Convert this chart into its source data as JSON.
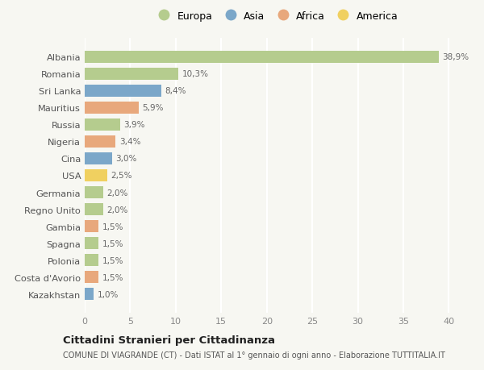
{
  "countries": [
    "Albania",
    "Romania",
    "Sri Lanka",
    "Mauritius",
    "Russia",
    "Nigeria",
    "Cina",
    "USA",
    "Germania",
    "Regno Unito",
    "Gambia",
    "Spagna",
    "Polonia",
    "Costa d'Avorio",
    "Kazakhstan"
  ],
  "values": [
    38.9,
    10.3,
    8.4,
    5.9,
    3.9,
    3.4,
    3.0,
    2.5,
    2.0,
    2.0,
    1.5,
    1.5,
    1.5,
    1.5,
    1.0
  ],
  "labels": [
    "38,9%",
    "10,3%",
    "8,4%",
    "5,9%",
    "3,9%",
    "3,4%",
    "3,0%",
    "2,5%",
    "2,0%",
    "2,0%",
    "1,5%",
    "1,5%",
    "1,5%",
    "1,5%",
    "1,0%"
  ],
  "regions": [
    "Europa",
    "Europa",
    "Asia",
    "Africa",
    "Europa",
    "Africa",
    "Asia",
    "America",
    "Europa",
    "Europa",
    "Africa",
    "Europa",
    "Europa",
    "Africa",
    "Asia"
  ],
  "colors": {
    "Europa": "#b5cc8e",
    "Asia": "#7ba7c9",
    "Africa": "#e8a87c",
    "America": "#f0d060"
  },
  "background_color": "#f7f7f2",
  "grid_color": "#ffffff",
  "title": "Cittadini Stranieri per Cittadinanza",
  "subtitle": "COMUNE DI VIAGRANDE (CT) - Dati ISTAT al 1° gennaio di ogni anno - Elaborazione TUTTITALIA.IT",
  "xlim": [
    0,
    42
  ],
  "xticks": [
    0,
    5,
    10,
    15,
    20,
    25,
    30,
    35,
    40
  ],
  "legend_order": [
    "Europa",
    "Asia",
    "Africa",
    "America"
  ]
}
